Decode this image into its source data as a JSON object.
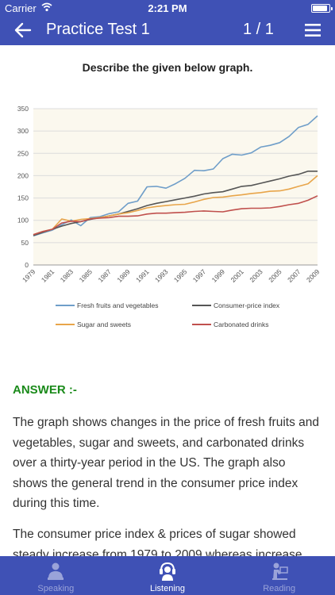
{
  "status_bar": {
    "carrier": "Carrier",
    "time": "2:21 PM",
    "battery_level": 0.9
  },
  "app_bar": {
    "title": "Practice Test 1",
    "counter": "1 / 1"
  },
  "icons": {
    "back": "arrow-left-icon",
    "menu": "hamburger-menu-icon",
    "wifi": "wifi-icon",
    "battery": "battery-icon"
  },
  "question": {
    "text": "Describe the given below graph."
  },
  "chart_data": {
    "type": "line",
    "x": [
      1979,
      1980,
      1981,
      1982,
      1983,
      1984,
      1985,
      1986,
      1987,
      1988,
      1989,
      1990,
      1991,
      1992,
      1993,
      1994,
      1995,
      1996,
      1997,
      1998,
      1999,
      2000,
      2001,
      2002,
      2003,
      2004,
      2005,
      2006,
      2007,
      2008,
      2009
    ],
    "x_tick_labels": [
      "1979",
      "1981",
      "1983",
      "1985",
      "1987",
      "1989",
      "1991",
      "1993",
      "1995",
      "1997",
      "1999",
      "2001",
      "2003",
      "2005",
      "2007",
      "2009"
    ],
    "ylim": [
      0,
      350
    ],
    "y_ticks": [
      0,
      50,
      100,
      150,
      200,
      250,
      300,
      350
    ],
    "grid": "horizontal",
    "legend_position": "bottom",
    "series": [
      {
        "name": "Fresh fruits and vegetables",
        "color": "#6f9ec9",
        "values": [
          65,
          72,
          78,
          90,
          101,
          88,
          106,
          108,
          115,
          119,
          138,
          143,
          175,
          176,
          172,
          182,
          194,
          212,
          211,
          215,
          238,
          248,
          246,
          251,
          264,
          268,
          274,
          288,
          308,
          315,
          334
        ]
      },
      {
        "name": "Consumer-price index",
        "color": "#555555",
        "values": [
          66,
          73,
          80,
          87,
          93,
          97,
          102,
          106,
          110,
          114,
          120,
          126,
          133,
          138,
          142,
          146,
          150,
          154,
          159,
          162,
          164,
          170,
          176,
          178,
          183,
          188,
          193,
          199,
          203,
          210,
          210
        ]
      },
      {
        "name": "Sugar and sweets",
        "color": "#e8a54a",
        "values": [
          68,
          75,
          80,
          103,
          98,
          102,
          104,
          106,
          110,
          114,
          117,
          122,
          128,
          131,
          133,
          135,
          136,
          141,
          147,
          151,
          152,
          155,
          157,
          160,
          162,
          165,
          166,
          170,
          176,
          182,
          200
        ]
      },
      {
        "name": "Carbonated drinks",
        "color": "#c0504d",
        "values": [
          68,
          75,
          80,
          94,
          98,
          97,
          103,
          105,
          106,
          109,
          109,
          110,
          114,
          116,
          116,
          117,
          118,
          120,
          121,
          120,
          119,
          123,
          126,
          127,
          127,
          128,
          131,
          135,
          138,
          145,
          155
        ]
      }
    ]
  },
  "answer": {
    "label": "ANSWER :-",
    "paragraphs": [
      "The graph shows changes in the price of fresh fruits and vegetables, sugar and sweets, and carbonated drinks over a thirty-year period in the US. The graph also shows the general trend in the consumer price index during this time.",
      "The consumer price index & prices of sugar showed steady increase from 1979 to 2009 whereas increase"
    ]
  },
  "tabs": [
    {
      "label": "Speaking",
      "icon": "speaking-person-icon",
      "active": false
    },
    {
      "label": "Listening",
      "icon": "headphones-person-icon",
      "active": true
    },
    {
      "label": "Reading",
      "icon": "reading-person-icon",
      "active": false
    }
  ],
  "colors": {
    "primary": "#3f51b5",
    "answer_label": "#1a8a1a",
    "tab_inactive": "#9aa3d9"
  }
}
